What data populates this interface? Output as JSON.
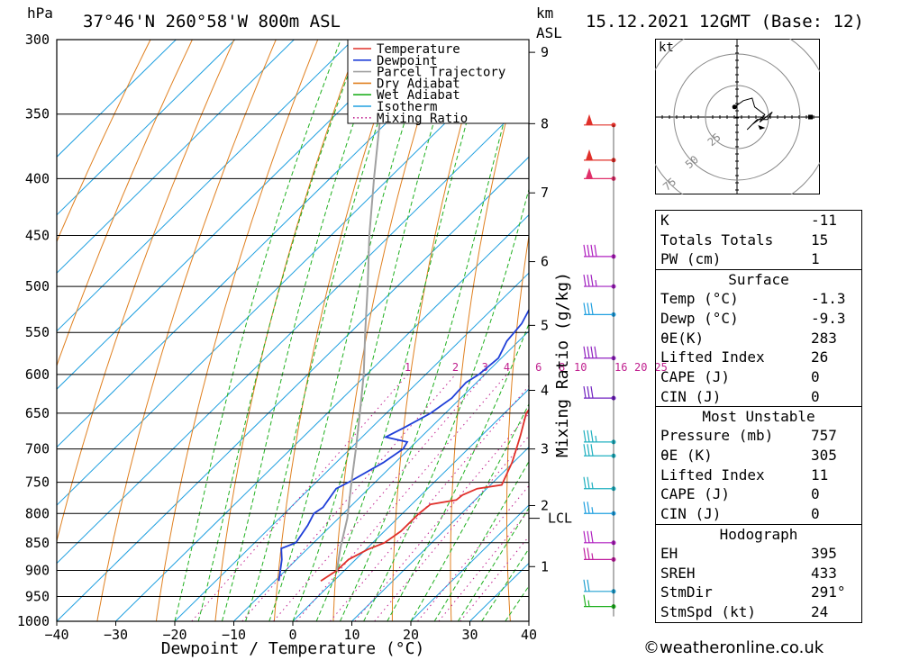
{
  "header": {
    "pressure_unit": "hPa",
    "location": "37°46'N  260°58'W  800m  ASL",
    "km_unit": "km",
    "km_asl": "ASL",
    "datetime": "15.12.2021  12GMT  (Base: 12)"
  },
  "copyright": "©weatheronline.co.uk",
  "chart_data": {
    "type": "line",
    "title": "",
    "xlabel": "Dewpoint / Temperature (°C)",
    "ylabel": "hPa",
    "xlim": [
      -40,
      40
    ],
    "ylim": [
      1000,
      300
    ],
    "x_ticks": [
      "−40",
      "−30",
      "−20",
      "−10",
      "0",
      "10",
      "20",
      "30",
      "40"
    ],
    "pressure_levels": [
      300,
      350,
      400,
      450,
      500,
      550,
      600,
      650,
      700,
      750,
      800,
      850,
      900,
      950,
      1000
    ],
    "pressure_labels": [
      "300",
      "350",
      "400",
      "450",
      "500",
      "550",
      "600",
      "650",
      "700",
      "750",
      "800",
      "850",
      "900",
      "950",
      "1000"
    ],
    "km_ticks": [
      {
        "p": 893,
        "label": "1"
      },
      {
        "p": 787,
        "label": "2"
      },
      {
        "p": 700,
        "label": "3"
      },
      {
        "p": 620,
        "label": "4"
      },
      {
        "p": 542,
        "label": "5"
      },
      {
        "p": 475,
        "label": "6"
      },
      {
        "p": 412,
        "label": "7"
      },
      {
        "p": 357,
        "label": "8"
      },
      {
        "p": 308,
        "label": "9"
      }
    ],
    "lcl": {
      "p": 808,
      "label": "LCL"
    },
    "mixing_ratio_axis_label": "Mixing Ratio (g/kg)",
    "mixing_ratio_values": [
      1,
      2,
      3,
      4,
      6,
      8,
      10,
      16,
      20,
      25
    ],
    "mixing_ratio_labels": [
      "1",
      "2",
      "3",
      "4",
      "6",
      "8",
      "10",
      "16",
      "20",
      "25"
    ],
    "legend": {
      "position": "top-right",
      "entries": [
        {
          "name": "Temperature",
          "color": "#e0302a",
          "style": "solid"
        },
        {
          "name": "Dewpoint",
          "color": "#1f3fd8",
          "style": "solid"
        },
        {
          "name": "Parcel Trajectory",
          "color": "#a0a0a0",
          "style": "solid"
        },
        {
          "name": "Dry Adiabat",
          "color": "#e08020",
          "style": "solid"
        },
        {
          "name": "Wet Adiabat",
          "color": "#20b020",
          "style": "solid"
        },
        {
          "name": "Isotherm",
          "color": "#20a0e0",
          "style": "solid"
        },
        {
          "name": "Mixing Ratio",
          "color": "#c0208f",
          "style": "dotted"
        }
      ]
    },
    "series": [
      {
        "name": "Temperature",
        "color": "#e0302a",
        "points": [
          [
            920,
            -2.2
          ],
          [
            900,
            -1.3
          ],
          [
            880,
            -1.2
          ],
          [
            862,
            0.3
          ],
          [
            850,
            2.0
          ],
          [
            830,
            2.8
          ],
          [
            800,
            2.8
          ],
          [
            785,
            3.2
          ],
          [
            778,
            6.8
          ],
          [
            770,
            7.0
          ],
          [
            760,
            8.4
          ],
          [
            754,
            11.9
          ],
          [
            720,
            9.8
          ],
          [
            700,
            8.2
          ],
          [
            680,
            6.5
          ],
          [
            650,
            3.7
          ],
          [
            620,
            2.7
          ],
          [
            600,
            1.0
          ],
          [
            570,
            -1.5
          ],
          [
            560,
            -1.1
          ],
          [
            550,
            -1.8
          ],
          [
            520,
            -4.5
          ],
          [
            500,
            -7.0
          ],
          [
            480,
            -9.5
          ],
          [
            470,
            -9.5
          ],
          [
            450,
            -11.5
          ],
          [
            430,
            -14.0
          ],
          [
            400,
            -18.0
          ],
          [
            380,
            -21.5
          ],
          [
            350,
            -26.0
          ],
          [
            320,
            -31.0
          ],
          [
            300,
            -33.5
          ]
        ]
      },
      {
        "name": "Dewpoint",
        "color": "#1f3fd8",
        "points": [
          [
            920,
            -9.3
          ],
          [
            880,
            -12.5
          ],
          [
            860,
            -14.5
          ],
          [
            850,
            -13.0
          ],
          [
            820,
            -14.0
          ],
          [
            800,
            -15.0
          ],
          [
            790,
            -14.5
          ],
          [
            760,
            -15.5
          ],
          [
            750,
            -14.5
          ],
          [
            720,
            -12.0
          ],
          [
            700,
            -11.0
          ],
          [
            690,
            -11.5
          ],
          [
            683,
            -16.0
          ],
          [
            670,
            -14.5
          ],
          [
            650,
            -12.5
          ],
          [
            630,
            -11.5
          ],
          [
            610,
            -11.8
          ],
          [
            600,
            -11.0
          ],
          [
            580,
            -10.5
          ],
          [
            560,
            -12.0
          ],
          [
            540,
            -12.5
          ],
          [
            520,
            -14.0
          ],
          [
            500,
            -14.0
          ],
          [
            480,
            -15.0
          ],
          [
            470,
            -13.0
          ],
          [
            450,
            -13.0
          ],
          [
            430,
            -14.0
          ],
          [
            400,
            -17.0
          ],
          [
            380,
            -21.0
          ],
          [
            362,
            -24.0
          ],
          [
            350,
            -30.0
          ],
          [
            330,
            -33.0
          ],
          [
            310,
            -36.0
          ],
          [
            300,
            -39.0
          ]
        ]
      },
      {
        "name": "Parcel Trajectory",
        "color": "#a0a0a0",
        "points": [
          [
            900,
            -1.3
          ],
          [
            860,
            -4.5
          ],
          [
            808,
            -8.5
          ],
          [
            750,
            -14.0
          ],
          [
            700,
            -19.0
          ],
          [
            650,
            -24.5
          ],
          [
            600,
            -30.5
          ],
          [
            550,
            -37.5
          ],
          [
            500,
            -45.0
          ],
          [
            450,
            -53.5
          ],
          [
            400,
            -62.5
          ],
          [
            350,
            -72.5
          ],
          [
            300,
            -83.0
          ]
        ]
      }
    ],
    "wind_barbs": [
      {
        "p": 358,
        "speed_kt": 50,
        "color": "#e0302a"
      },
      {
        "p": 385,
        "speed_kt": 50,
        "color": "#e0302a"
      },
      {
        "p": 400,
        "speed_kt": 50,
        "color": "#e0306a"
      },
      {
        "p": 470,
        "speed_kt": 40,
        "color": "#b020c0"
      },
      {
        "p": 500,
        "speed_kt": 35,
        "color": "#a020c0"
      },
      {
        "p": 530,
        "speed_kt": 30,
        "color": "#20a0e0"
      },
      {
        "p": 580,
        "speed_kt": 40,
        "color": "#9020c0"
      },
      {
        "p": 630,
        "speed_kt": 30,
        "color": "#7020c0"
      },
      {
        "p": 690,
        "speed_kt": 35,
        "color": "#20b0c0"
      },
      {
        "p": 710,
        "speed_kt": 30,
        "color": "#20b0c0"
      },
      {
        "p": 760,
        "speed_kt": 25,
        "color": "#20b0c0"
      },
      {
        "p": 800,
        "speed_kt": 25,
        "color": "#20a0e0"
      },
      {
        "p": 850,
        "speed_kt": 30,
        "color": "#b020c0"
      },
      {
        "p": 880,
        "speed_kt": 25,
        "color": "#c020a0"
      },
      {
        "p": 940,
        "speed_kt": 20,
        "color": "#20a0d0"
      },
      {
        "p": 970,
        "speed_kt": 15,
        "color": "#20b020"
      }
    ],
    "hodograph": {
      "unit": "kt",
      "rings": [
        25,
        50,
        75
      ],
      "ring_labels": [
        "25",
        "50",
        "75"
      ],
      "trace": [
        [
          -2,
          8
        ],
        [
          5,
          13
        ],
        [
          12,
          15
        ],
        [
          14,
          8
        ],
        [
          22,
          2
        ],
        [
          18,
          -4
        ],
        [
          28,
          4
        ],
        [
          24,
          -2
        ],
        [
          16,
          -2
        ],
        [
          8,
          -10
        ],
        [
          12,
          -6
        ],
        [
          20,
          0
        ]
      ],
      "storm_motion": {
        "dir_deg": 291,
        "speed_kt": 24
      }
    }
  },
  "indices": {
    "main": [
      {
        "label": "K",
        "value": "-11"
      },
      {
        "label": "Totals Totals",
        "value": "15"
      },
      {
        "label": "PW (cm)",
        "value": "1"
      }
    ],
    "surface": {
      "title": "Surface",
      "rows": [
        {
          "label": "Temp (°C)",
          "value": "-1.3"
        },
        {
          "label": "Dewp (°C)",
          "value": "-9.3"
        },
        {
          "label": "θE(K)",
          "value": "283"
        },
        {
          "label": "Lifted Index",
          "value": "26"
        },
        {
          "label": "CAPE (J)",
          "value": "0"
        },
        {
          "label": "CIN (J)",
          "value": "0"
        }
      ]
    },
    "most_unstable": {
      "title": "Most Unstable",
      "rows": [
        {
          "label": "Pressure (mb)",
          "value": "757"
        },
        {
          "label": "θE (K)",
          "value": "305"
        },
        {
          "label": "Lifted Index",
          "value": "11"
        },
        {
          "label": "CAPE (J)",
          "value": "0"
        },
        {
          "label": "CIN (J)",
          "value": "0"
        }
      ]
    },
    "hodograph": {
      "title": "Hodograph",
      "rows": [
        {
          "label": "EH",
          "value": "395"
        },
        {
          "label": "SREH",
          "value": "433"
        },
        {
          "label": "StmDir",
          "value": "291°"
        },
        {
          "label": "StmSpd (kt)",
          "value": "24"
        }
      ]
    }
  }
}
